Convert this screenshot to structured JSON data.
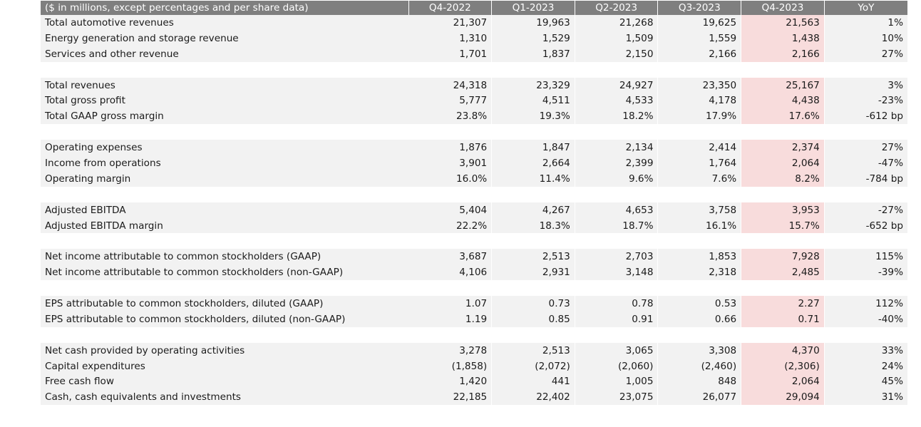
{
  "table": {
    "header_label": "($ in millions, except percentages and per share data)",
    "columns": [
      "Q4-2022",
      "Q1-2023",
      "Q2-2023",
      "Q3-2023",
      "Q4-2023",
      "YoY"
    ],
    "highlight_column": 4,
    "colors": {
      "header_bg": "#7f7f7f",
      "row_bg": "#f2f2f2",
      "highlight_bg": "#f8dcdc"
    },
    "rows": [
      {
        "label": "Total automotive revenues",
        "values": [
          "21,307",
          "19,963",
          "21,268",
          "19,625",
          "21,563",
          "1%"
        ]
      },
      {
        "label": "Energy generation and storage revenue",
        "values": [
          "1,310",
          "1,529",
          "1,509",
          "1,559",
          "1,438",
          "10%"
        ]
      },
      {
        "label": "Services and other revenue",
        "values": [
          "1,701",
          "1,837",
          "2,150",
          "2,166",
          "2,166",
          "27%"
        ]
      },
      {
        "spacer": true
      },
      {
        "label": "Total revenues",
        "values": [
          "24,318",
          "23,329",
          "24,927",
          "23,350",
          "25,167",
          "3%"
        ]
      },
      {
        "label": "Total gross profit",
        "values": [
          "5,777",
          "4,511",
          "4,533",
          "4,178",
          "4,438",
          "-23%"
        ]
      },
      {
        "label": "Total GAAP gross margin",
        "values": [
          "23.8%",
          "19.3%",
          "18.2%",
          "17.9%",
          "17.6%",
          "-612 bp"
        ]
      },
      {
        "spacer": true
      },
      {
        "label": "Operating expenses",
        "values": [
          "1,876",
          "1,847",
          "2,134",
          "2,414",
          "2,374",
          "27%"
        ]
      },
      {
        "label": "Income from operations",
        "values": [
          "3,901",
          "2,664",
          "2,399",
          "1,764",
          "2,064",
          "-47%"
        ]
      },
      {
        "label": "Operating margin",
        "values": [
          "16.0%",
          "11.4%",
          "9.6%",
          "7.6%",
          "8.2%",
          "-784 bp"
        ]
      },
      {
        "spacer": true
      },
      {
        "label": "Adjusted EBITDA",
        "values": [
          "5,404",
          "4,267",
          "4,653",
          "3,758",
          "3,953",
          "-27%"
        ]
      },
      {
        "label": "Adjusted EBITDA margin",
        "values": [
          "22.2%",
          "18.3%",
          "18.7%",
          "16.1%",
          "15.7%",
          "-652 bp"
        ]
      },
      {
        "spacer": true
      },
      {
        "label": "Net income attributable to common stockholders (GAAP)",
        "values": [
          "3,687",
          "2,513",
          "2,703",
          "1,853",
          "7,928",
          "115%"
        ]
      },
      {
        "label": "Net income attributable to common stockholders (non-GAAP)",
        "values": [
          "4,106",
          "2,931",
          "3,148",
          "2,318",
          "2,485",
          "-39%"
        ]
      },
      {
        "spacer": true
      },
      {
        "label": "EPS attributable to common stockholders, diluted (GAAP)",
        "values": [
          "1.07",
          "0.73",
          "0.78",
          "0.53",
          "2.27",
          "112%"
        ]
      },
      {
        "label": "EPS attributable to common stockholders, diluted (non-GAAP)",
        "values": [
          "1.19",
          "0.85",
          "0.91",
          "0.66",
          "0.71",
          "-40%"
        ]
      },
      {
        "spacer": true
      },
      {
        "label": "Net cash provided by operating activities",
        "values": [
          "3,278",
          "2,513",
          "3,065",
          "3,308",
          "4,370",
          "33%"
        ]
      },
      {
        "label": "Capital expenditures",
        "values": [
          "(1,858)",
          "(2,072)",
          "(2,060)",
          "(2,460)",
          "(2,306)",
          "24%"
        ]
      },
      {
        "label": "Free cash flow",
        "values": [
          "1,420",
          "441",
          "1,005",
          "848",
          "2,064",
          "45%"
        ]
      },
      {
        "label": "Cash, cash equivalents and investments",
        "values": [
          "22,185",
          "22,402",
          "23,075",
          "26,077",
          "29,094",
          "31%"
        ]
      }
    ]
  }
}
